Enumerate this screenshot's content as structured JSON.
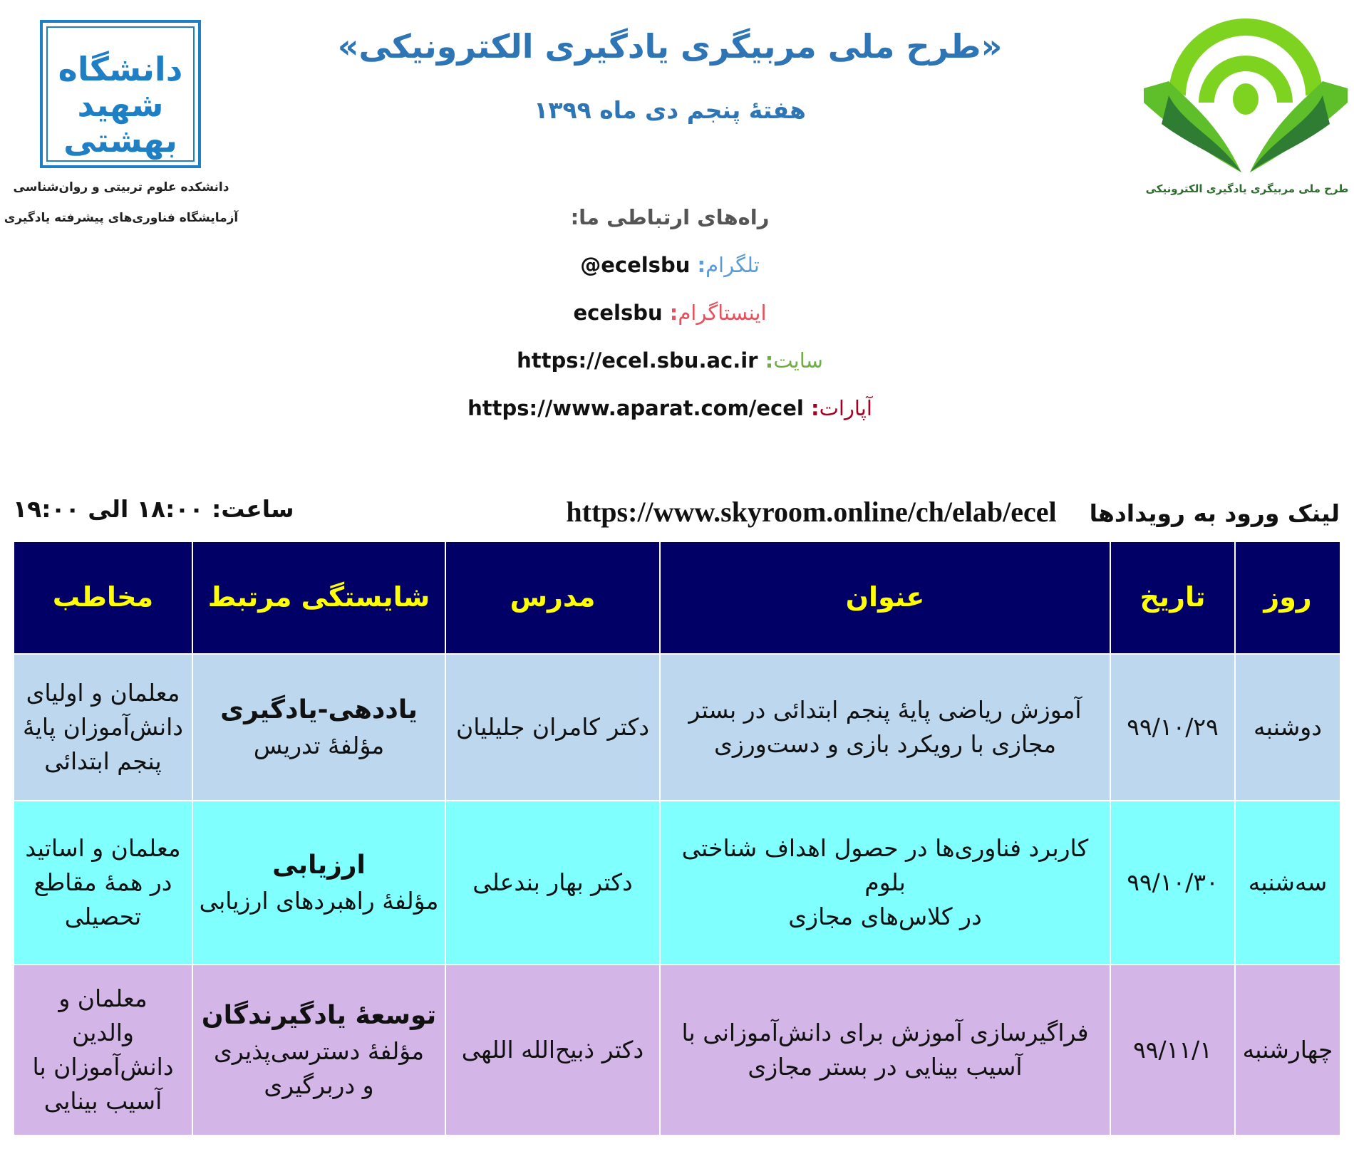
{
  "header": {
    "title": "«طرح ملی مربیگری یادگیری الکترونیکی»",
    "subtitle": "هفتهٔ پنجم دی ماه ۱۳۹۹",
    "left_logo_text": "دانشگاه شهید بهشتی",
    "left_caption_1": "دانشکده علوم تربیتی و روان‌شناسی",
    "left_caption_2": "آزمایشگاه فناوری‌های پیشرفته یادگیری",
    "right_logo_caption": "طرح ملی مربیگری یادگیری الکترونیکی",
    "colors": {
      "title": "#2E75B6",
      "logo_blue": "#1F7FC4",
      "logo_green_light": "#7ED321",
      "logo_green_dark": "#2E7D32"
    }
  },
  "contact": {
    "heading": "راه‌های ارتباطی ما:",
    "items": [
      {
        "label": "تلگرام",
        "value": "@ecelsbu",
        "color": "#5B9BD5"
      },
      {
        "label": "اینستاگرام",
        "value": "ecelsbu",
        "color": "#E8505B"
      },
      {
        "label": "سایت",
        "value": "https://ecel.sbu.ac.ir",
        "color": "#70AD47"
      },
      {
        "label": "آپارات",
        "value": "https://www.aparat.com/ecel",
        "color": "#A50021"
      }
    ]
  },
  "events_link": {
    "label": "لینک ورود به رویدادها",
    "url": "https://www.skyroom.online/ch/elab/ecel",
    "time": "ساعت: ۱۸:۰۰ الی ۱۹:۰۰"
  },
  "table": {
    "headers": [
      "روز",
      "تاریخ",
      "عنوان",
      "مدرس",
      "شایستگی مرتبط",
      "مخاطب"
    ],
    "colors": {
      "header_bg": "#000066",
      "header_text": "#FFFF00",
      "row_bgs": [
        "#BDD7EE",
        "#80FFFF",
        "#D4B5E8"
      ]
    },
    "rows": [
      {
        "day": "دوشنبه",
        "date": "۹۹/۱۰/۲۹",
        "title": [
          "آموزش ریاضی پایهٔ پنجم ابتدائی در بستر",
          "مجازی با رویکرد بازی و دست‌ورزی"
        ],
        "instructor": "دکتر کامران جلیلیان",
        "competency": "یاددهی-یادگیری",
        "component": [
          "مؤلفهٔ تدریس"
        ],
        "audience": [
          "معلمان و اولیای",
          "دانش‌آموزان پایهٔ",
          "پنجم ابتدائی"
        ]
      },
      {
        "day": "سه‌شنبه",
        "date": "۹۹/۱۰/۳۰",
        "title": [
          "کاربرد فناوری‌ها در حصول اهداف شناختی بلوم",
          "در کلاس‌های مجازی"
        ],
        "instructor": "دکتر بهار بندعلی",
        "competency": "ارزیابی",
        "component": [
          "مؤلفهٔ راهبردهای ارزیابی"
        ],
        "audience": [
          "معلمان و اساتید",
          "در همهٔ مقاطع",
          "تحصیلی"
        ]
      },
      {
        "day": "چهارشنبه",
        "date": "۹۹/۱۱/۱",
        "title": [
          "فراگیرسازی آموزش برای دانش‌آموزانی با",
          "آسیب بینایی در بستر مجازی"
        ],
        "instructor": "دکتر ذبیح‌الله اللهی",
        "competency": "توسعهٔ یادگیرندگان",
        "component": [
          "مؤلفهٔ دسترسی‌پذیری",
          "و دربرگیری"
        ],
        "audience": [
          "معلمان و",
          "والدین",
          "دانش‌آموزان با",
          "آسیب بینایی"
        ]
      }
    ]
  }
}
